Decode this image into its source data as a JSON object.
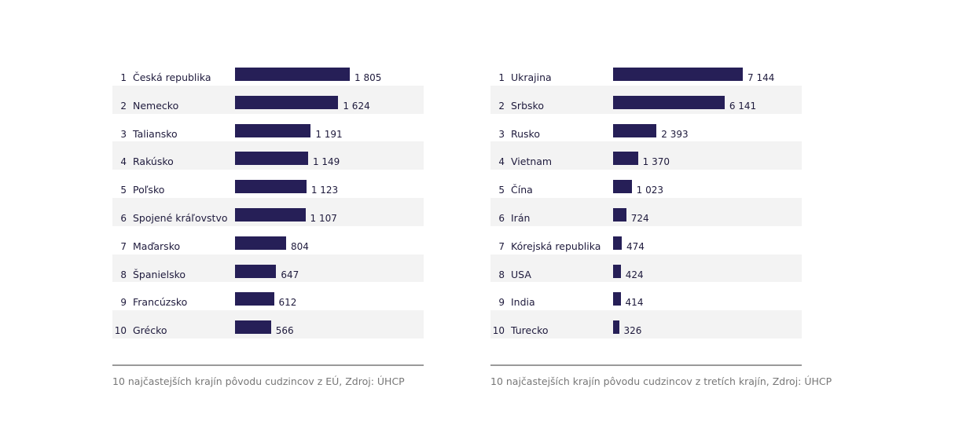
{
  "chart_data": [
    {
      "type": "bar",
      "orientation": "horizontal",
      "caption": "10 najčastejších krajín pôvodu cudzincov z EÚ, Zdroj: ÚHCP",
      "ranks": [
        "1",
        "2",
        "3",
        "4",
        "5",
        "6",
        "7",
        "8",
        "9",
        "10"
      ],
      "categories": [
        "Česká republika",
        "Nemecko",
        "Taliansko",
        "Rakúsko",
        "Poľsko",
        "Spojené kráľovstvo",
        "Maďarsko",
        "Španielsko",
        "Francúzsko",
        "Grécko"
      ],
      "values": [
        1805,
        1624,
        1191,
        1149,
        1123,
        1107,
        804,
        647,
        612,
        566
      ],
      "labels": [
        "1 805",
        "1 624",
        "1 191",
        "1 149",
        "1 123",
        "1 107",
        "804",
        "647",
        "612",
        "566"
      ],
      "bar_color": "#261f57"
    },
    {
      "type": "bar",
      "orientation": "horizontal",
      "caption": "10 najčastejších krajín pôvodu cudzincov z tretích krajín, Zdroj: ÚHCP",
      "ranks": [
        "1",
        "2",
        "3",
        "4",
        "5",
        "6",
        "7",
        "8",
        "9",
        "10"
      ],
      "categories": [
        "Ukrajina",
        "Srbsko",
        "Rusko",
        "Vietnam",
        "Čína",
        "Irán",
        "Kórejská republika",
        "USA",
        "India",
        "Turecko"
      ],
      "values": [
        7144,
        6141,
        2393,
        1370,
        1023,
        724,
        474,
        424,
        414,
        326
      ],
      "labels": [
        "7 144",
        "6 141",
        "2 393",
        "1 370",
        "1 023",
        "724",
        "474",
        "424",
        "414",
        "326"
      ],
      "bar_color": "#261f57"
    }
  ]
}
